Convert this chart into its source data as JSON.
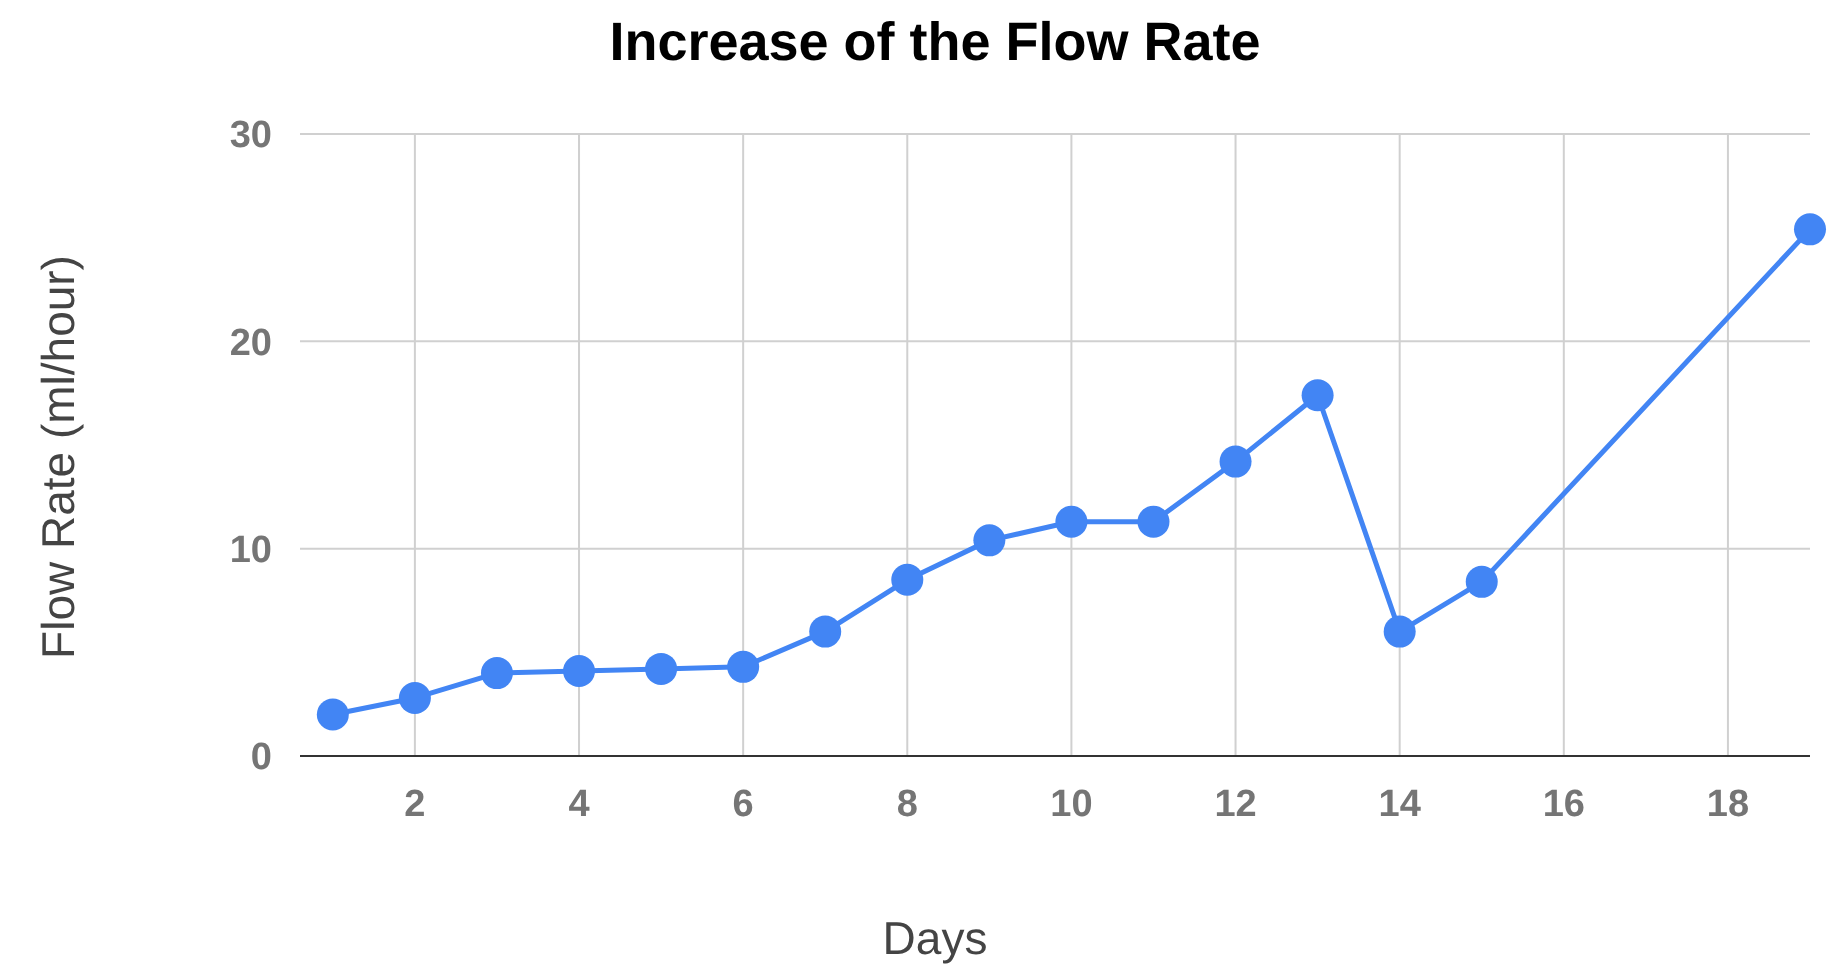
{
  "chart_data": {
    "type": "line",
    "title": "Increase of the Flow Rate",
    "xlabel": "Days",
    "ylabel": "Flow Rate (ml/hour)",
    "x": [
      1,
      2,
      3,
      4,
      5,
      6,
      7,
      8,
      9,
      10,
      11,
      12,
      13,
      14,
      15,
      19
    ],
    "series": [
      {
        "color": "#4285f4",
        "values": [
          2.0,
          2.8,
          4.0,
          4.1,
          4.2,
          4.3,
          6.0,
          8.5,
          10.4,
          11.3,
          11.3,
          14.2,
          17.4,
          6.0,
          8.4,
          25.4
        ]
      }
    ],
    "xlim": [
      0.6,
      19
    ],
    "xticks": [
      2,
      4,
      6,
      8,
      10,
      12,
      14,
      16,
      18
    ],
    "ylim": [
      0,
      30
    ],
    "yticks": [
      0,
      10,
      20,
      30
    ],
    "grid": true,
    "marker": "circle",
    "line_style": "solid"
  }
}
